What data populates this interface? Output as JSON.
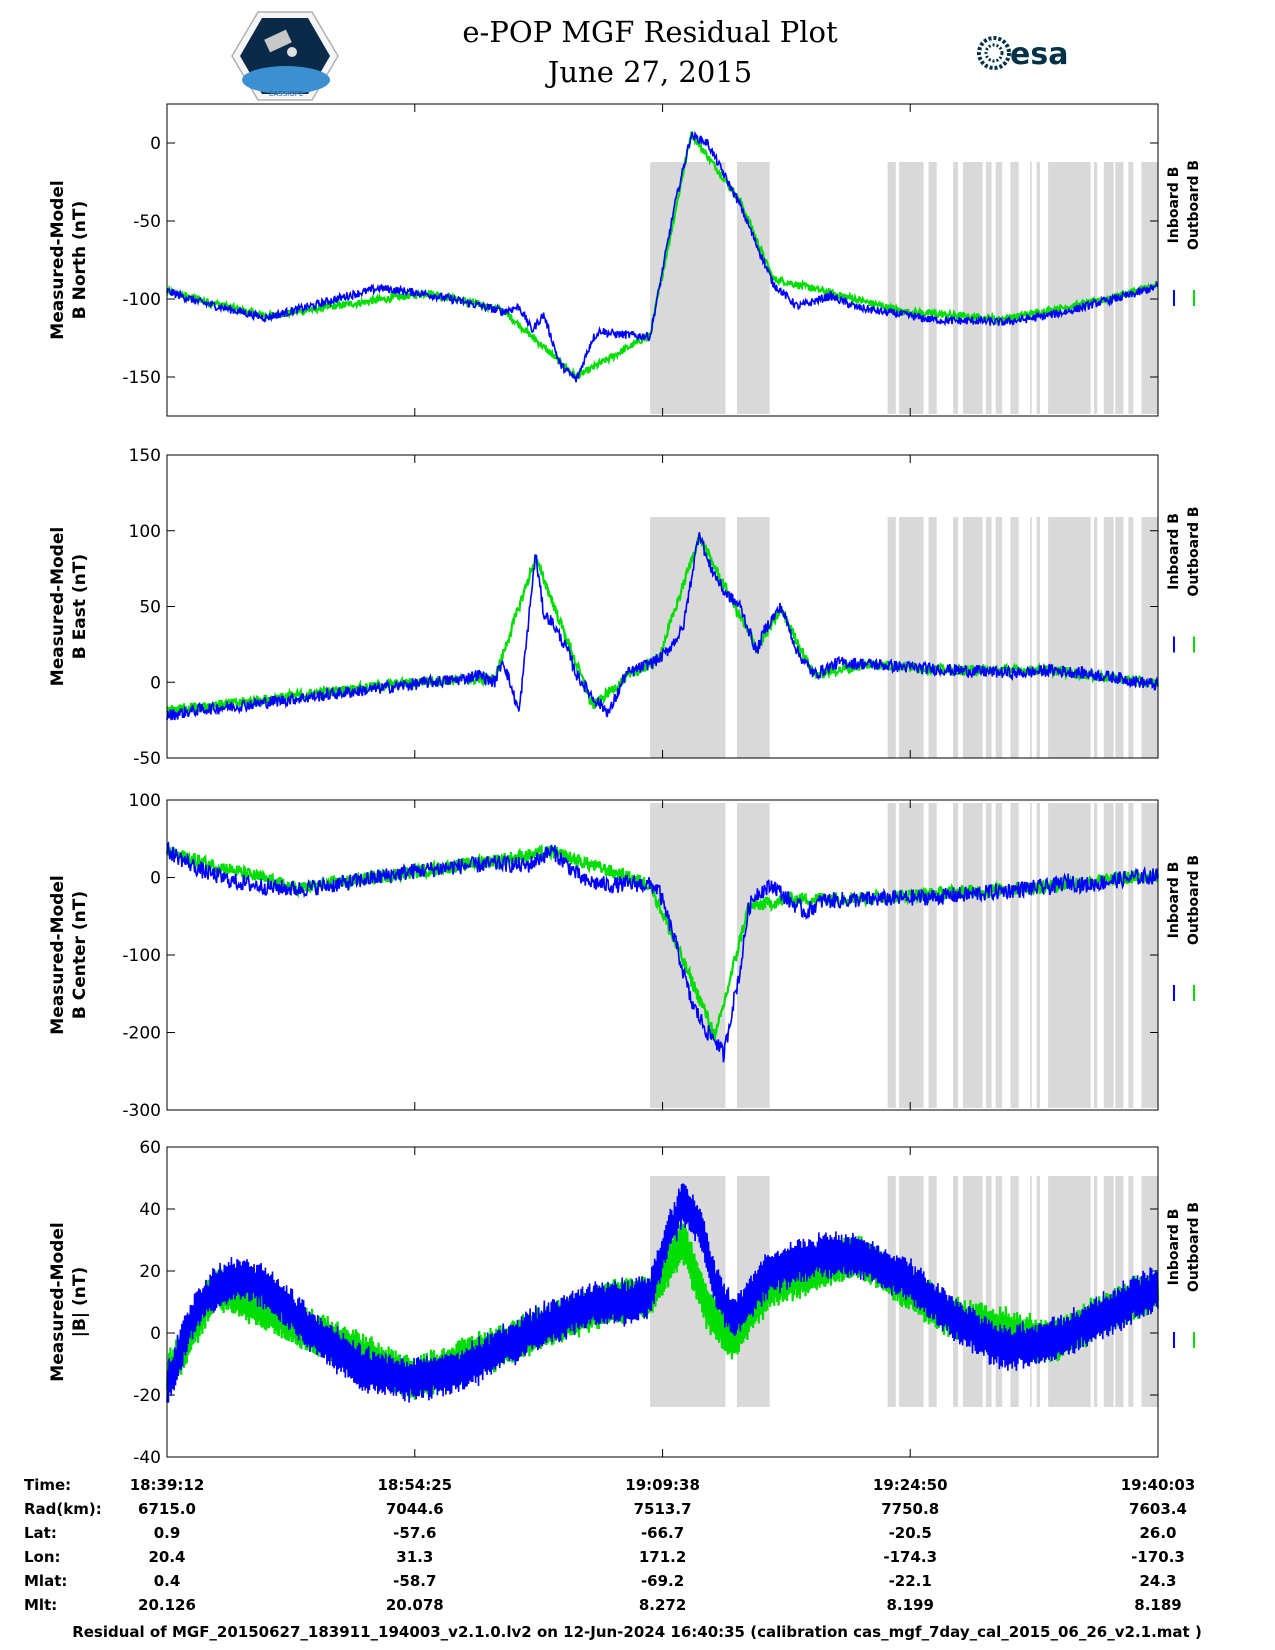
{
  "header": {
    "title_line1": "e-POP MGF Residual Plot",
    "title_line2": "June 27, 2015",
    "logo_left_text": "CASSIOPE",
    "logo_right_text": "esa"
  },
  "colors": {
    "inboard": "#0000ff",
    "outboard": "#00dd00",
    "shade": "#d9d9d9"
  },
  "legend": {
    "inboard": "Inboard B",
    "outboard": "Outboard B"
  },
  "chart_data": [
    {
      "type": "line",
      "ylabel_line1": "Measured-Model",
      "ylabel_line2": "B North (nT)",
      "ylim": [
        -175,
        25
      ],
      "yticks": [
        0,
        -50,
        -100,
        -150
      ],
      "series": [
        {
          "name": "Inboard B",
          "x": [
            0,
            200,
            600,
            900,
            1100,
            1300,
            1600,
            1900,
            2050,
            2150,
            2230,
            2300,
            2400,
            2500,
            2600,
            2650,
            2700,
            2800,
            2950,
            3100,
            3200,
            3300,
            3500,
            3700,
            3850,
            4050,
            4200,
            4350,
            4500,
            4650,
            4800,
            4950,
            5100,
            5300,
            5500,
            5700,
            5900,
            6051
          ],
          "values": [
            -95,
            -102,
            -112,
            -104,
            -98,
            -93,
            -97,
            -104,
            -108,
            -105,
            -120,
            -110,
            -142,
            -152,
            -125,
            -120,
            -122,
            -123,
            -124,
            -40,
            5,
            0,
            -40,
            -90,
            -105,
            -98,
            -105,
            -108,
            -110,
            -113,
            -114,
            -114,
            -115,
            -112,
            -108,
            -102,
            -97,
            -92
          ]
        },
        {
          "name": "Outboard B",
          "x": [
            0,
            600,
            1600,
            2050,
            2500,
            2950,
            3200,
            3500,
            3700,
            4050,
            4500,
            5100,
            5700,
            6051
          ],
          "values": [
            -95,
            -111,
            -96,
            -107,
            -150,
            -123,
            6,
            -37,
            -87,
            -96,
            -108,
            -113,
            -101,
            -91
          ]
        }
      ]
    },
    {
      "type": "line",
      "ylabel_line1": "Measured-Model",
      "ylabel_line2": "B East (nT)",
      "ylim": [
        -50,
        150
      ],
      "yticks": [
        150,
        100,
        50,
        0,
        -50
      ],
      "series": [
        {
          "name": "Inboard B",
          "x": [
            0,
            200,
            400,
            700,
            1000,
            1300,
            1600,
            1800,
            1900,
            2000,
            2050,
            2150,
            2250,
            2300,
            2350,
            2450,
            2500,
            2600,
            2700,
            2800,
            2900,
            3000,
            3050,
            3150,
            3250,
            3300,
            3400,
            3500,
            3600,
            3650,
            3750,
            3850,
            3950,
            4100,
            4300,
            4500,
            4800,
            5000,
            5200,
            5400,
            5600,
            5800,
            6051
          ],
          "values": [
            -22,
            -18,
            -16,
            -12,
            -8,
            -4,
            0,
            2,
            5,
            0,
            15,
            -20,
            85,
            45,
            40,
            20,
            5,
            -10,
            -20,
            5,
            10,
            15,
            20,
            35,
            100,
            80,
            60,
            50,
            20,
            35,
            50,
            20,
            5,
            13,
            12,
            10,
            8,
            7,
            6,
            8,
            6,
            3,
            -2
          ]
        },
        {
          "name": "Outboard B",
          "x": [
            0,
            400,
            1000,
            1600,
            2000,
            2250,
            2600,
            2800,
            3000,
            3250,
            3600,
            3750,
            3950,
            4300,
            4800,
            5400,
            6051
          ],
          "values": [
            -18,
            -14,
            -6,
            1,
            2,
            82,
            -16,
            3,
            15,
            96,
            22,
            48,
            5,
            12,
            8,
            8,
            -1
          ]
        }
      ]
    },
    {
      "type": "line",
      "ylabel_line1": "Measured-Model",
      "ylabel_line2": "B Center (nT)",
      "ylim": [
        -300,
        100
      ],
      "yticks": [
        100,
        0,
        -100,
        -200,
        -300
      ],
      "series": [
        {
          "name": "Inboard B",
          "x": [
            0,
            200,
            400,
            600,
            800,
            1000,
            1200,
            1500,
            1800,
            2050,
            2200,
            2350,
            2450,
            2550,
            2700,
            2850,
            2950,
            3000,
            3100,
            3200,
            3300,
            3350,
            3400,
            3450,
            3500,
            3550,
            3600,
            3700,
            3800,
            3900,
            4000,
            4300,
            4700,
            5000,
            5200,
            5400,
            5500,
            5600,
            5750,
            5900,
            6051
          ],
          "values": [
            35,
            10,
            -5,
            -12,
            -15,
            -10,
            -3,
            8,
            15,
            18,
            15,
            35,
            15,
            -5,
            -10,
            -8,
            -10,
            -15,
            -80,
            -160,
            -200,
            -210,
            -230,
            -170,
            -120,
            -40,
            -20,
            -10,
            -30,
            -45,
            -30,
            -28,
            -25,
            -20,
            -15,
            -12,
            -5,
            -10,
            -5,
            0,
            2
          ]
        },
        {
          "name": "Outboard B",
          "x": [
            0,
            800,
            1800,
            2350,
            2950,
            3350,
            3550,
            3800,
            4300,
            5200,
            6051
          ],
          "values": [
            33,
            -14,
            16,
            33,
            -9,
            -205,
            -38,
            -28,
            -26,
            -14,
            3
          ]
        }
      ]
    },
    {
      "type": "line",
      "ylabel_line1": "Measured-Model",
      "ylabel_line2": "|B| (nT)",
      "ylim": [
        -40,
        60
      ],
      "yticks": [
        60,
        40,
        20,
        0,
        -20,
        -40
      ],
      "series": [
        {
          "name": "Inboard B",
          "x": [
            0,
            150,
            300,
            450,
            600,
            900,
            1200,
            1500,
            1800,
            2100,
            2400,
            2550,
            2700,
            2850,
            2950,
            3050,
            3150,
            3250,
            3350,
            3450,
            3550,
            3650,
            3800,
            4000,
            4200,
            4500,
            4800,
            5100,
            5400,
            5700,
            6051
          ],
          "values": [
            -18,
            5,
            15,
            18,
            15,
            0,
            -12,
            -15,
            -12,
            -3,
            5,
            8,
            10,
            10,
            12,
            30,
            42,
            35,
            15,
            5,
            10,
            18,
            22,
            25,
            25,
            18,
            5,
            -5,
            -3,
            5,
            15
          ]
        },
        {
          "name": "Outboard B",
          "x": [
            0,
            300,
            900,
            1500,
            2100,
            2700,
            2950,
            3150,
            3300,
            3450,
            3550,
            3700,
            4200,
            4800,
            5400,
            6051
          ],
          "values": [
            -14,
            15,
            0,
            -15,
            -3,
            10,
            12,
            30,
            8,
            -2,
            5,
            15,
            25,
            5,
            -3,
            15
          ]
        }
      ]
    }
  ],
  "shading_ranges": [
    [
      2950,
      3410
    ],
    [
      3480,
      3680
    ],
    [
      4400,
      4450
    ],
    [
      4470,
      4620
    ],
    [
      4650,
      4700
    ],
    [
      4800,
      4830
    ],
    [
      4860,
      4980
    ],
    [
      5000,
      5035
    ],
    [
      5060,
      5100
    ],
    [
      5150,
      5200
    ],
    [
      5270,
      5280
    ],
    [
      5310,
      5330
    ],
    [
      5380,
      5640
    ],
    [
      5660,
      5680
    ],
    [
      5720,
      5780
    ],
    [
      5790,
      5840
    ],
    [
      5870,
      5900
    ],
    [
      5950,
      6051
    ]
  ],
  "x_ticks": [
    0,
    1513,
    3026,
    4538,
    6051
  ],
  "orbit_table": {
    "row_labels": [
      "Time:",
      "Rad(km):",
      "Lat:",
      "Lon:",
      "Mlat:",
      "Mlt:"
    ],
    "columns": [
      [
        "18:39:12",
        "6715.0",
        "0.9",
        "20.4",
        "0.4",
        "20.126"
      ],
      [
        "18:54:25",
        "7044.6",
        "-57.6",
        "31.3",
        "-58.7",
        "20.078"
      ],
      [
        "19:09:38",
        "7513.7",
        "-66.7",
        "171.2",
        "-69.2",
        "8.272"
      ],
      [
        "19:24:50",
        "7750.8",
        "-20.5",
        "-174.3",
        "-22.1",
        "8.199"
      ],
      [
        "19:40:03",
        "7603.4",
        "26.0",
        "-170.3",
        "24.3",
        "8.189"
      ]
    ]
  },
  "footer": "Residual of MGF_20150627_183911_194003_v2.1.0.lv2 on 12-Jun-2024 16:40:35 (calibration cas_mgf_7day_cal_2015_06_26_v2.1.mat )"
}
